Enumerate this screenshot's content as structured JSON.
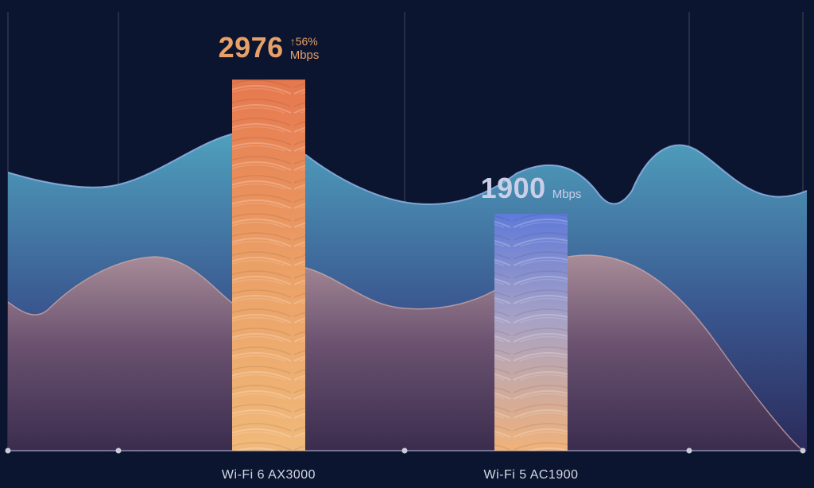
{
  "chart_data": {
    "type": "bar",
    "categories": [
      "Wi-Fi 6 AX3000",
      "Wi-Fi 5 AC1900"
    ],
    "values": [
      2976,
      1900
    ],
    "unit": "Mbps",
    "ylim": [
      0,
      3500
    ],
    "grid": true,
    "annotations": [
      {
        "category": "Wi-Fi 6 AX3000",
        "value_label": "2976",
        "increase_label": "↑56%",
        "unit_label": "Mbps"
      },
      {
        "category": "Wi-Fi 5 AC1900",
        "value_label": "1900",
        "unit_label": "Mbps"
      }
    ],
    "colors": {
      "background": "#0b1530",
      "wifi6_bar": "#e98a55",
      "wifi6_text": "#e7a168",
      "wifi5_bar": "#6f86d9",
      "wifi5_text": "#c9cfe6",
      "axis_labels": "#d4d7e4"
    }
  }
}
